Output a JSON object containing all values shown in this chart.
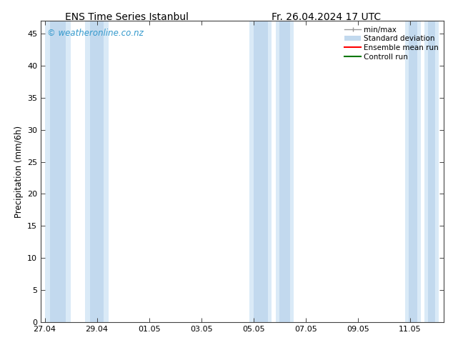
{
  "title_left": "ENS Time Series Istanbul",
  "title_right": "Fr. 26.04.2024 17 UTC",
  "ylabel": "Precipitation (mm/6h)",
  "ylim": [
    0,
    47
  ],
  "yticks": [
    0,
    5,
    10,
    15,
    20,
    25,
    30,
    35,
    40,
    45
  ],
  "xtick_positions": [
    0,
    2,
    4,
    6,
    8,
    10,
    12,
    14
  ],
  "xtick_labels": [
    "27.04",
    "29.04",
    "01.05",
    "03.05",
    "05.05",
    "07.05",
    "09.05",
    "11.05"
  ],
  "xlim": [
    -0.15,
    15.3
  ],
  "watermark": "© weatheronline.co.nz",
  "watermark_color": "#3399cc",
  "bg_color": "#ffffff",
  "plot_bg_color": "#ffffff",
  "band_outer_color": "#daeaf7",
  "band_inner_color": "#c2d9ee",
  "title_fontsize": 10,
  "tick_fontsize": 8,
  "label_fontsize": 8.5,
  "watermark_fontsize": 8.5,
  "legend_fontsize": 7.5,
  "minmax_color": "#999999",
  "ensemble_color": "#ff0000",
  "control_color": "#007700",
  "bands": [
    {
      "outer": [
        0.0,
        1.0
      ],
      "inner": [
        0.2,
        0.8
      ]
    },
    {
      "outer": [
        1.55,
        2.45
      ],
      "inner": [
        1.75,
        2.25
      ]
    },
    {
      "outer": [
        7.85,
        8.7
      ],
      "inner": [
        8.0,
        8.55
      ]
    },
    {
      "outer": [
        8.85,
        9.55
      ],
      "inner": [
        9.0,
        9.4
      ]
    },
    {
      "outer": [
        13.8,
        14.42
      ],
      "inner": [
        13.95,
        14.27
      ]
    },
    {
      "outer": [
        14.55,
        15.1
      ],
      "inner": [
        14.7,
        14.95
      ]
    }
  ]
}
